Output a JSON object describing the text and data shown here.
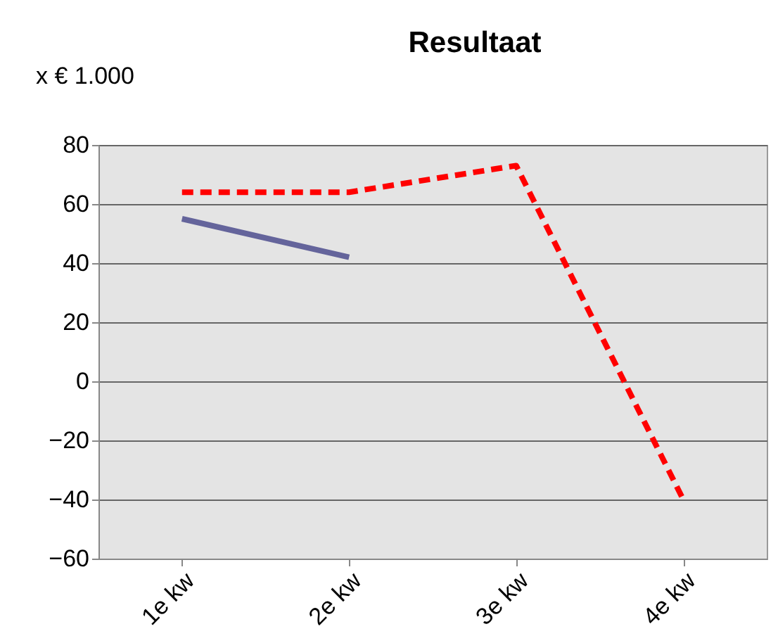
{
  "chart_data": {
    "type": "line",
    "title": "Resultaat",
    "ylabel": "x € 1.000",
    "categories": [
      "1e kw",
      "2e kw",
      "3e kw",
      "4e kw"
    ],
    "series": [
      {
        "color": "#64649b",
        "line_style": "solid",
        "values": [
          55,
          42,
          null,
          null
        ]
      },
      {
        "color": "#ff0000",
        "line_style": "dashed",
        "values": [
          64,
          64,
          73,
          -40
        ]
      }
    ],
    "ylim": [
      -60,
      80
    ],
    "yticks": [
      -60,
      -40,
      -20,
      0,
      20,
      40,
      60,
      80
    ],
    "grid": "y",
    "legend": false
  }
}
